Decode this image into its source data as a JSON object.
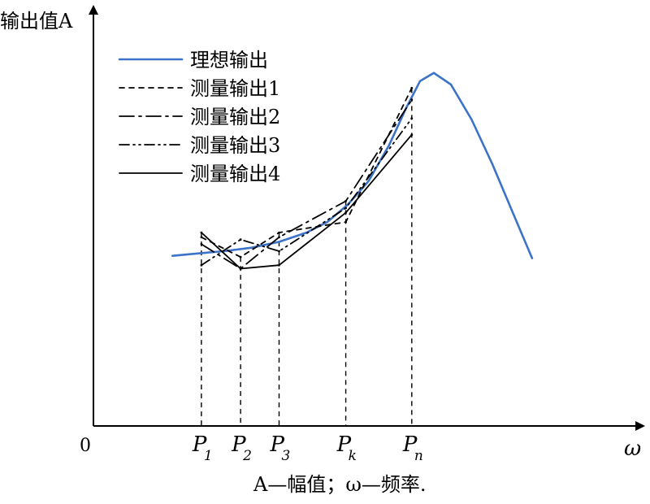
{
  "chart_data": {
    "type": "line",
    "title": "",
    "ylabel": "输出值A",
    "xlabel": "ω",
    "origin_label": "0",
    "caption": "A—幅值；ω—频率.",
    "colors": {
      "ideal": "#3b73c9",
      "measured": "#000000",
      "axis": "#000000"
    },
    "legend": {
      "placement": "top-left",
      "entries": [
        {
          "name": "理想输出",
          "style": "solid",
          "color": "#3b73c9"
        },
        {
          "name": "测量输出1",
          "style": "dash",
          "color": "#000000"
        },
        {
          "name": "测量输出2",
          "style": "long-dash-dot",
          "color": "#000000"
        },
        {
          "name": "测量输出3",
          "style": "dash-dot-dot",
          "color": "#000000"
        },
        {
          "name": "测量输出4",
          "style": "solid",
          "color": "#000000"
        }
      ]
    },
    "xlim": [
      0,
      800
    ],
    "ylim": [
      0,
      360
    ],
    "x_ticks": [
      {
        "label": "P",
        "sub": "1",
        "x": 157
      },
      {
        "label": "P",
        "sub": "2",
        "x": 214
      },
      {
        "label": "P",
        "sub": "3",
        "x": 270
      },
      {
        "label": "P",
        "sub": "k",
        "x": 367
      },
      {
        "label": "P",
        "sub": "n",
        "x": 463
      }
    ],
    "series": [
      {
        "name": "理想输出",
        "style": "solid",
        "x": [
          115,
          150,
          190,
          230,
          270,
          310,
          340,
          370,
          400,
          430,
          455,
          475,
          495,
          520,
          550,
          580,
          610,
          638
        ],
        "y": [
          146,
          148,
          150,
          153,
          158,
          166,
          175,
          190,
          210,
          241,
          273,
          296,
          303,
          293,
          263,
          225,
          183,
          144
        ]
      },
      {
        "name": "测量输出1",
        "style": "dash",
        "x": [
          157,
          214,
          270,
          367,
          463
        ],
        "y": [
          162,
          145,
          166,
          175,
          290
        ]
      },
      {
        "name": "测量输出2",
        "style": "long-dash-dot",
        "x": [
          157,
          214,
          270,
          367,
          463
        ],
        "y": [
          156,
          135,
          162,
          193,
          280
        ]
      },
      {
        "name": "测量输出3",
        "style": "dash-dot-dot",
        "x": [
          157,
          214,
          270,
          367,
          463
        ],
        "y": [
          138,
          160,
          150,
          187,
          264
        ]
      },
      {
        "name": "测量输出4",
        "style": "solid",
        "x": [
          157,
          214,
          270,
          367,
          463
        ],
        "y": [
          166,
          135,
          138,
          183,
          250
        ]
      }
    ]
  }
}
